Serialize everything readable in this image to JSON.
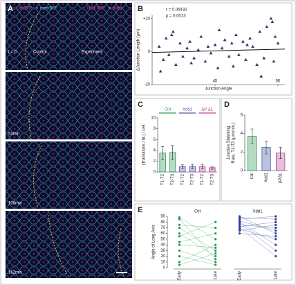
{
  "panel_a": {
    "letter": "A",
    "header": [
      "Utr-RFP",
      "+",
      "memBFP",
      "H2B-RFP",
      "+",
      "Xdd1"
    ],
    "frames": [
      "t = 0",
      "54min",
      "108min",
      "162min"
    ],
    "regions": [
      "Control",
      "Experiment"
    ]
  },
  "chart_data": [
    {
      "letter": "B",
      "type": "scatter",
      "annotations": [
        "r = 0.05432",
        "p = 0.0013"
      ],
      "x_label": "Junction Angle",
      "y_label": "ΔJunction Length (μm)",
      "color": "#2b3a67",
      "x": [
        5,
        8,
        10,
        12,
        15,
        17,
        20,
        22,
        25,
        27,
        30,
        33,
        35,
        38,
        40,
        42,
        45,
        47,
        50,
        52,
        55,
        57,
        60,
        62,
        65,
        67,
        70,
        72,
        75,
        77,
        80,
        82,
        85,
        87,
        88,
        90,
        6,
        14,
        28,
        48,
        58,
        68,
        78,
        86
      ],
      "values": [
        3,
        -5,
        8,
        -2,
        12,
        -8,
        5,
        -3,
        2,
        6,
        -4,
        1,
        9,
        -6,
        3,
        -1,
        4,
        -10,
        2,
        7,
        -3,
        5,
        10,
        -2,
        6,
        -5,
        8,
        3,
        -8,
        12,
        -4,
        15,
        20,
        -6,
        9,
        5,
        -12,
        10,
        -7,
        13,
        -9,
        4,
        -15,
        18
      ],
      "fit": {
        "x": [
          0,
          95
        ],
        "values": [
          -0.5,
          1.5
        ]
      },
      "xlim": [
        0,
        95
      ],
      "ylim": [
        -20,
        22
      ],
      "xticks": [
        45,
        90
      ],
      "yticks": [
        -20,
        0,
        {
          "value": 20,
          "label": "+20"
        }
      ]
    },
    {
      "letter": "C",
      "type": "bar",
      "y_label": "(Transitions / hr.) / cell",
      "groups": [
        {
          "name": "Ctrl",
          "color": "#2e9a55"
        },
        {
          "name": "Xdd1",
          "color": "#5b55a8"
        },
        {
          "name": "ΔP ΔL",
          "color": "#b04a9a"
        }
      ],
      "categories": [
        "T1-T2",
        "T2-T3",
        "T1-T2",
        "T2-T3",
        "T1-T2",
        "T2-T3"
      ],
      "values": [
        3.5,
        3.6,
        1.0,
        1.0,
        1.0,
        0.8
      ],
      "errors": [
        1.2,
        1.3,
        0.3,
        0.4,
        0.4,
        0.3
      ],
      "ylim": [
        0,
        10
      ],
      "yticks": [
        0,
        2,
        4,
        6,
        8,
        10
      ]
    },
    {
      "letter": "D",
      "type": "bar",
      "y_label": [
        "Junction Shrinking",
        "Rate, T1-T2 (μm/min.)"
      ],
      "categories": [
        "Ctrl",
        "Xdd1",
        "ΔPΔL"
      ],
      "colors": [
        "#2e9a55",
        "#3b4fa0",
        "#b04a9a"
      ],
      "values": [
        3.7,
        2.5,
        1.9
      ],
      "errors": [
        0.8,
        0.7,
        0.6
      ],
      "ylim": [
        0,
        6
      ],
      "yticks": [
        0,
        2,
        4,
        6
      ]
    },
    {
      "letter": "E",
      "type": "line",
      "y_label": "Angle of Long Axis",
      "categories": [
        "Early",
        "Late"
      ],
      "groups": [
        {
          "name": "Ctrl",
          "color": "#1f9a4f",
          "early": [
            85,
            70,
            60,
            45,
            30,
            20,
            10,
            5,
            88,
            55,
            40,
            75
          ],
          "late": [
            15,
            30,
            20,
            60,
            10,
            5,
            40,
            25,
            50,
            80,
            35,
            70
          ]
        },
        {
          "name": "Xdd1",
          "color": "#2e3f9a",
          "early": [
            88,
            80,
            75,
            70,
            65,
            60,
            85,
            78,
            90,
            72,
            68,
            82
          ],
          "late": [
            85,
            40,
            70,
            20,
            75,
            55,
            90,
            30,
            60,
            80,
            50,
            65
          ]
        }
      ],
      "ylim": [
        0,
        90
      ],
      "yticks": [
        0,
        10,
        20,
        30,
        40,
        50,
        60,
        70,
        80,
        90
      ]
    }
  ]
}
